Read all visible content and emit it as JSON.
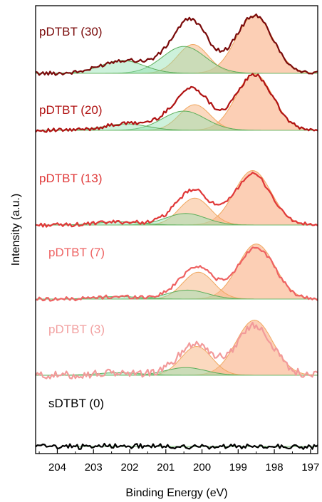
{
  "chart_data": {
    "type": "line",
    "title": "",
    "xlabel": "Binding Energy (eV)",
    "ylabel": "Intensity (a.u.)",
    "x_reversed": true,
    "xlim": [
      204.6,
      196.8
    ],
    "x_ticks": [
      204,
      203,
      202,
      201,
      200,
      199,
      198,
      197
    ],
    "y_ticks_shown": false,
    "grid": false,
    "component_colors": {
      "peak_high": "#90e0b0",
      "peak_mid": "#f7b98a",
      "peak_low": "#f9a878",
      "doublet_1": "#6cb86a",
      "doublet_2": "#f0a860"
    },
    "panels": [
      {
        "label": "pDTBT (30)",
        "color": "#7a0a0a",
        "label_color": "#7a0a0a",
        "scale": 1.0,
        "components": [
          {
            "center": 198.55,
            "fwhm": 1.2,
            "height": 0.9,
            "color": "#f9a878"
          },
          {
            "center": 200.25,
            "fwhm": 1.0,
            "height": 0.45,
            "color": "#f7b98a"
          },
          {
            "center": 200.5,
            "fwhm": 1.4,
            "height": 0.42,
            "color": "#90e0b0"
          },
          {
            "center": 202.2,
            "fwhm": 1.4,
            "height": 0.2,
            "color": "#90e0b0"
          }
        ]
      },
      {
        "label": "pDTBT (20)",
        "color": "#b01212",
        "label_color": "#b01212",
        "scale": 0.98,
        "components": [
          {
            "center": 198.55,
            "fwhm": 1.2,
            "height": 0.88,
            "color": "#f9a878"
          },
          {
            "center": 200.2,
            "fwhm": 1.0,
            "height": 0.4,
            "color": "#f7b98a"
          },
          {
            "center": 200.5,
            "fwhm": 1.4,
            "height": 0.3,
            "color": "#90e0b0"
          },
          {
            "center": 202.1,
            "fwhm": 1.4,
            "height": 0.1,
            "color": "#90e0b0"
          }
        ]
      },
      {
        "label": "pDTBT (13)",
        "color": "#e03838",
        "label_color": "#e03838",
        "scale": 0.93,
        "components": [
          {
            "center": 198.6,
            "fwhm": 1.2,
            "height": 0.85,
            "color": "#f9a878"
          },
          {
            "center": 200.2,
            "fwhm": 1.0,
            "height": 0.42,
            "color": "#f7b98a"
          },
          {
            "center": 200.45,
            "fwhm": 1.3,
            "height": 0.18,
            "color": "#90e0b0"
          },
          {
            "center": 202.3,
            "fwhm": 1.4,
            "height": 0.05,
            "color": "#90e0b0"
          }
        ]
      },
      {
        "label": "pDTBT (7)",
        "color": "#ee6262",
        "label_color": "#ee6262",
        "scale": 0.94,
        "components": [
          {
            "center": 198.5,
            "fwhm": 1.2,
            "height": 0.86,
            "color": "#f9a878"
          },
          {
            "center": 200.1,
            "fwhm": 1.0,
            "height": 0.42,
            "color": "#f7b98a"
          },
          {
            "center": 200.4,
            "fwhm": 1.3,
            "height": 0.14,
            "color": "#90e0b0"
          },
          {
            "center": 202.3,
            "fwhm": 1.4,
            "height": 0.04,
            "color": "#90e0b0"
          }
        ]
      },
      {
        "label": "pDTBT (3)",
        "color": "#f29a9a",
        "label_color": "#f2a0a0",
        "scale": 0.9,
        "components": [
          {
            "center": 198.55,
            "fwhm": 1.2,
            "height": 0.86,
            "color": "#f9a878"
          },
          {
            "center": 200.15,
            "fwhm": 1.0,
            "height": 0.45,
            "color": "#f7b98a"
          },
          {
            "center": 200.45,
            "fwhm": 1.3,
            "height": 0.12,
            "color": "#90e0b0"
          },
          {
            "center": 202.3,
            "fwhm": 1.4,
            "height": 0.04,
            "color": "#90e0b0"
          }
        ]
      },
      {
        "label": "sDTBT (0)",
        "color": "#000000",
        "label_color": "#000000",
        "scale": 0.0,
        "components": []
      }
    ]
  }
}
